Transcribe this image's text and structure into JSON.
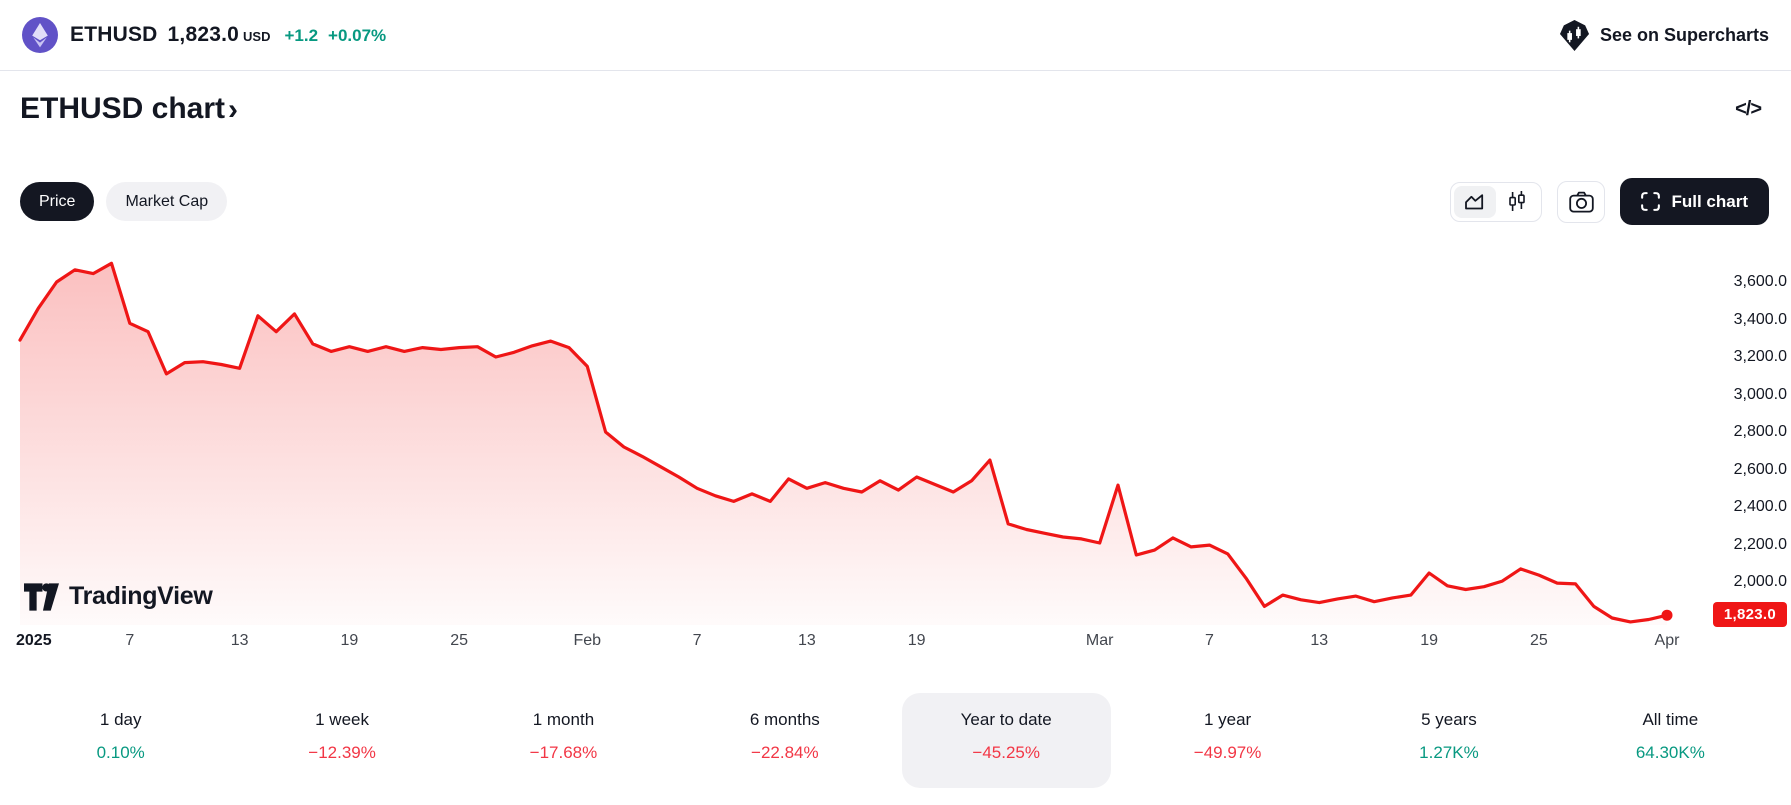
{
  "header": {
    "symbol": "ETHUSD",
    "price": "1,823.0",
    "currency": "USD",
    "change_abs": "+1.2",
    "change_pct": "+0.07%",
    "supercharts_label": "See on Supercharts"
  },
  "title": {
    "text": "ETHUSD chart",
    "chevron": "›"
  },
  "icons": {
    "code_icon": "</>",
    "eth_icon": "ethereum-logo",
    "supercharts_icon": "tradingview-gem",
    "area_chart_icon": "area-chart",
    "candlestick_icon": "candlesticks",
    "camera_icon": "camera",
    "fullscreen_icon": "fullscreen-brackets",
    "tv_logo_icon": "tradingview-logo"
  },
  "controls": {
    "price_label": "Price",
    "market_cap_label": "Market Cap",
    "full_chart_label": "Full chart"
  },
  "watermark": "TradingView",
  "colors": {
    "up": "#089981",
    "down": "#f23645",
    "line": "#ef1616",
    "ink": "#131722",
    "eth_purple": "#6152c7"
  },
  "chart_data": {
    "type": "area",
    "title": "ETHUSD price, year to date",
    "xlabel": "",
    "ylabel": "",
    "grid": false,
    "legend": "none",
    "x_range": [
      "2025-01-01",
      "2025-04-01"
    ],
    "ylim": [
      1780,
      3720
    ],
    "y_axis": {
      "ticks": [
        {
          "label": "3,600.0",
          "value": 3600
        },
        {
          "label": "3,400.0",
          "value": 3400
        },
        {
          "label": "3,200.0",
          "value": 3200
        },
        {
          "label": "3,000.0",
          "value": 3000
        },
        {
          "label": "2,800.0",
          "value": 2800
        },
        {
          "label": "2,600.0",
          "value": 2600
        },
        {
          "label": "2,400.0",
          "value": 2400
        },
        {
          "label": "2,200.0",
          "value": 2200
        },
        {
          "label": "2,000.0",
          "value": 2000
        }
      ]
    },
    "x_axis": {
      "ticks": [
        {
          "label": "2025",
          "day": 0,
          "bold": true
        },
        {
          "label": "7",
          "day": 6
        },
        {
          "label": "13",
          "day": 12
        },
        {
          "label": "19",
          "day": 18
        },
        {
          "label": "25",
          "day": 24
        },
        {
          "label": "Feb",
          "day": 31
        },
        {
          "label": "7",
          "day": 37
        },
        {
          "label": "13",
          "day": 43
        },
        {
          "label": "19",
          "day": 49
        },
        {
          "label": "Mar",
          "day": 59
        },
        {
          "label": "7",
          "day": 65
        },
        {
          "label": "13",
          "day": 71
        },
        {
          "label": "19",
          "day": 77
        },
        {
          "label": "25",
          "day": 83
        },
        {
          "label": "Apr",
          "day": 90
        }
      ]
    },
    "last_price": {
      "label": "1,823.0",
      "value": 1823
    },
    "area_fill": {
      "top": "rgba(239,22,22,0.27)",
      "bottom": "rgba(239,22,22,0.02)"
    },
    "series": [
      {
        "name": "ETHUSD",
        "color": "#ef1616",
        "interval": "daily",
        "values_daily": [
          3290,
          3460,
          3600,
          3665,
          3645,
          3700,
          3380,
          3335,
          3110,
          3170,
          3175,
          3160,
          3140,
          3420,
          3335,
          3430,
          3270,
          3230,
          3255,
          3230,
          3255,
          3230,
          3250,
          3240,
          3250,
          3255,
          3200,
          3225,
          3260,
          3285,
          3250,
          3150,
          2800,
          2720,
          2670,
          2615,
          2560,
          2500,
          2460,
          2430,
          2470,
          2430,
          2550,
          2500,
          2530,
          2500,
          2480,
          2540,
          2490,
          2560,
          2520,
          2480,
          2540,
          2650,
          2310,
          2280,
          2260,
          2240,
          2230,
          2208,
          2517,
          2144,
          2170,
          2235,
          2187,
          2197,
          2150,
          2020,
          1870,
          1930,
          1905,
          1890,
          1910,
          1925,
          1895,
          1915,
          1930,
          2048,
          1980,
          1960,
          1975,
          2005,
          2070,
          2037,
          1994,
          1990,
          1870,
          1808,
          1787,
          1800,
          1823
        ]
      }
    ]
  },
  "periods": [
    {
      "label": "1 day",
      "change": "0.10%",
      "direction": "up",
      "selected": false
    },
    {
      "label": "1 week",
      "change": "−12.39%",
      "direction": "down",
      "selected": false
    },
    {
      "label": "1 month",
      "change": "−17.68%",
      "direction": "down",
      "selected": false
    },
    {
      "label": "6 months",
      "change": "−22.84%",
      "direction": "down",
      "selected": false
    },
    {
      "label": "Year to date",
      "change": "−45.25%",
      "direction": "down",
      "selected": true
    },
    {
      "label": "1 year",
      "change": "−49.97%",
      "direction": "down",
      "selected": false
    },
    {
      "label": "5 years",
      "change": "1.27K%",
      "direction": "up",
      "selected": false
    },
    {
      "label": "All time",
      "change": "64.30K%",
      "direction": "up",
      "selected": false
    }
  ]
}
